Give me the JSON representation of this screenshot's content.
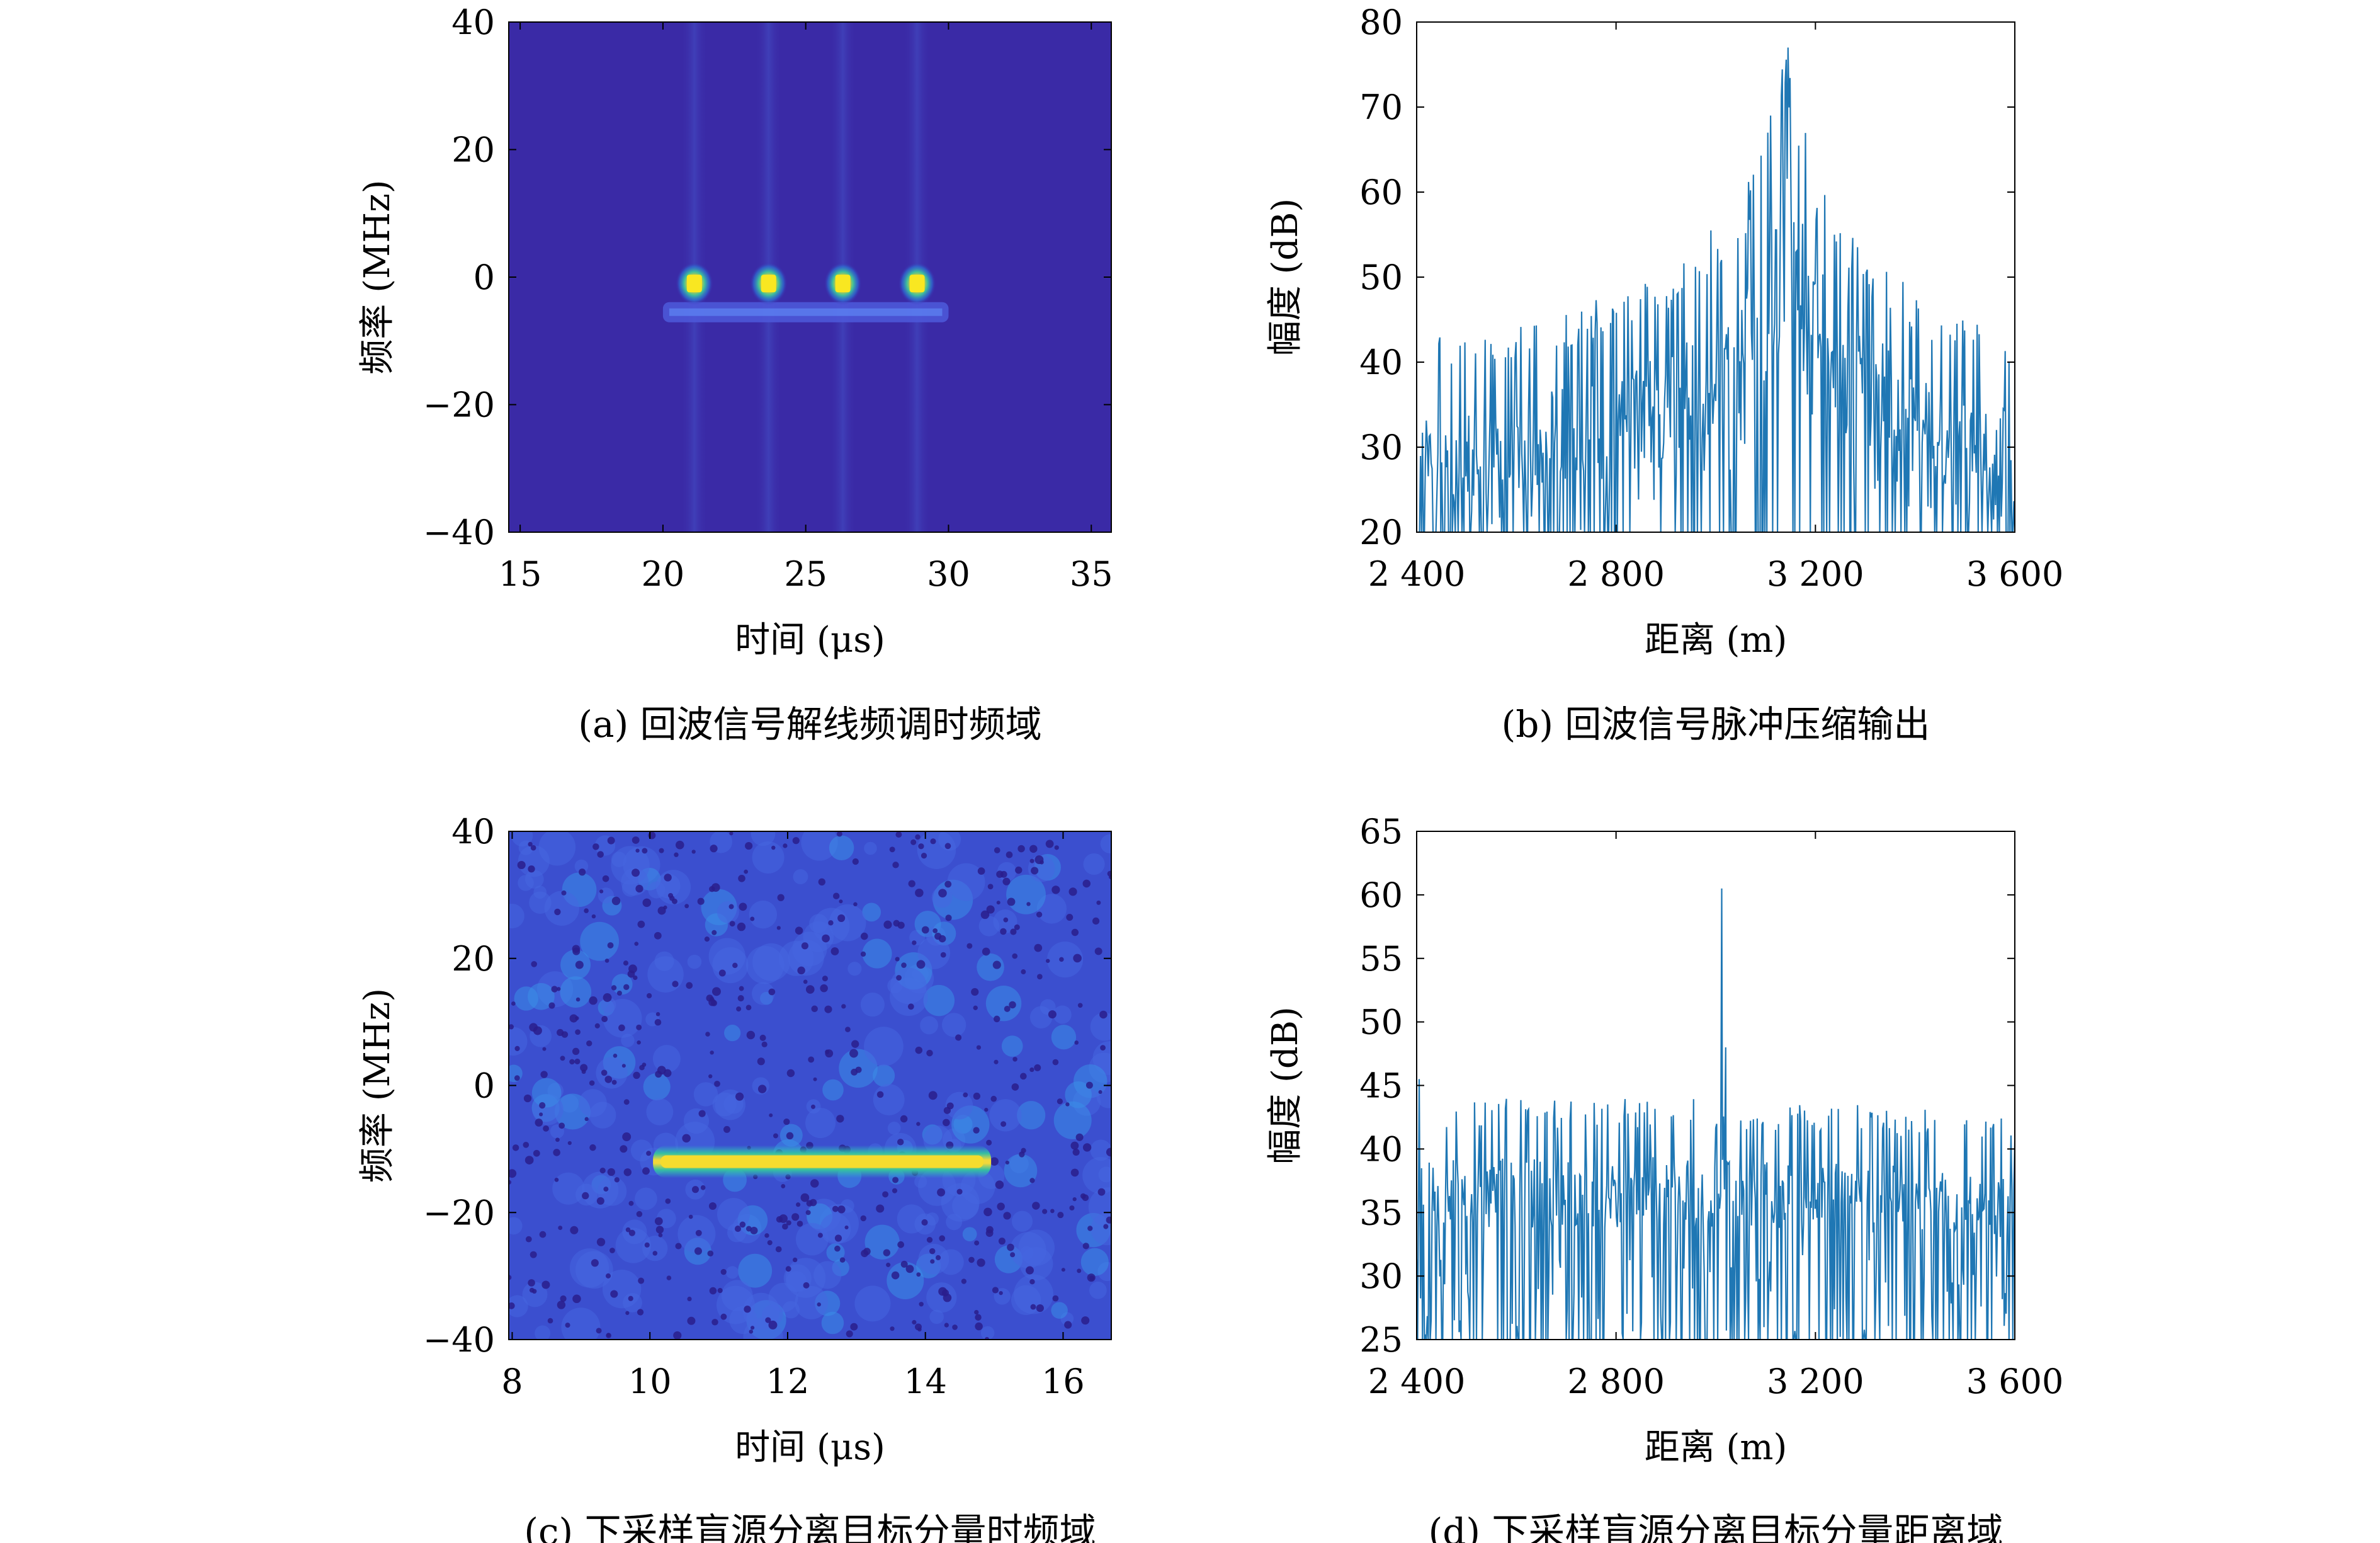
{
  "colors": {
    "heatmap_background": "#3a2aa6",
    "heatmap_low": "#3d26a8",
    "heatmap_mid": "#2db9c9",
    "heatmap_high": "#f9e721",
    "line": "#1f77b4",
    "axis": "#000000"
  },
  "chart_data": [
    {
      "id": "a",
      "type": "heatmap",
      "caption": "(a) 回波信号解线频调时频域",
      "xlabel": "时间 (μs)",
      "ylabel": "频率 (MHz)",
      "xlim": [
        14.6,
        35.7
      ],
      "ylim": [
        -40,
        40
      ],
      "xticks": [
        15,
        20,
        25,
        30,
        35
      ],
      "xtick_labels": [
        "15",
        "20",
        "25",
        "30",
        "35"
      ],
      "yticks": [
        40,
        20,
        0,
        -20,
        -40
      ],
      "ytick_labels": [
        "40",
        "20",
        "0",
        "−20",
        "−40"
      ],
      "grid": false,
      "features": {
        "band_frequency": -5.5,
        "band_time_range": [
          20,
          30
        ],
        "hotspots": [
          {
            "time": 21.1,
            "frequency": -1
          },
          {
            "time": 23.7,
            "frequency": -1
          },
          {
            "time": 26.3,
            "frequency": -1
          },
          {
            "time": 28.9,
            "frequency": -1
          }
        ]
      }
    },
    {
      "id": "b",
      "type": "line",
      "caption": "(b) 回波信号脉冲压缩输出",
      "xlabel": "距离 (m)",
      "ylabel": "幅度 (dB)",
      "xlim": [
        2400,
        3600
      ],
      "ylim": [
        20,
        80
      ],
      "xticks": [
        2400,
        2800,
        3200,
        3600
      ],
      "xtick_labels": [
        "2 400",
        "2 800",
        "3 200",
        "3 600"
      ],
      "yticks": [
        20,
        30,
        40,
        50,
        60,
        70,
        80
      ],
      "ytick_labels": [
        "20",
        "30",
        "40",
        "50",
        "60",
        "70",
        "80"
      ],
      "grid": false,
      "series": [
        {
          "envelope": [
            {
              "x": 2400,
              "baseline": 27,
              "peak": 43
            },
            {
              "x": 2600,
              "baseline": 29,
              "peak": 45
            },
            {
              "x": 2800,
              "baseline": 31,
              "peak": 48
            },
            {
              "x": 2950,
              "baseline": 35,
              "peak": 53
            },
            {
              "x": 3060,
              "baseline": 40,
              "peak": 60
            },
            {
              "x": 3140,
              "baseline": 55,
              "peak": 77
            },
            {
              "x": 3200,
              "baseline": 44,
              "peak": 62
            },
            {
              "x": 3300,
              "baseline": 37,
              "peak": 53
            },
            {
              "x": 3450,
              "baseline": 31,
              "peak": 46
            },
            {
              "x": 3600,
              "baseline": 28,
              "peak": 44
            }
          ],
          "notable_points": [
            {
              "x": 3110,
              "y": 69
            },
            {
              "x": 3145,
              "y": 77
            }
          ]
        }
      ]
    },
    {
      "id": "c",
      "type": "heatmap",
      "caption": "(c) 下采样盲源分离目标分量时频域",
      "xlabel": "时间 (μs)",
      "ylabel": "频率 (MHz)",
      "xlim": [
        7.95,
        16.7
      ],
      "ylim": [
        -40,
        40
      ],
      "xticks": [
        8,
        10,
        12,
        14,
        16
      ],
      "xtick_labels": [
        "8",
        "10",
        "12",
        "14",
        "16"
      ],
      "yticks": [
        40,
        20,
        0,
        -20,
        -40
      ],
      "ytick_labels": [
        "40",
        "20",
        "0",
        "−20",
        "−40"
      ],
      "grid": false,
      "features": {
        "band_frequency": -12,
        "band_time_range": [
          10.1,
          14.9
        ]
      }
    },
    {
      "id": "d",
      "type": "line",
      "caption": "(d) 下采样盲源分离目标分量距离域",
      "xlabel": "距离 (m)",
      "ylabel": "幅度 (dB)",
      "xlim": [
        2400,
        3600
      ],
      "ylim": [
        25,
        65
      ],
      "xticks": [
        2400,
        2800,
        3200,
        3600
      ],
      "xtick_labels": [
        "2 400",
        "2 800",
        "3 200",
        "3 600"
      ],
      "yticks": [
        25,
        30,
        35,
        40,
        45,
        50,
        55,
        60,
        65
      ],
      "ytick_labels": [
        "25",
        "30",
        "35",
        "40",
        "45",
        "50",
        "55",
        "60",
        "65"
      ],
      "grid": false,
      "series": [
        {
          "envelope": [
            {
              "x": 2400,
              "baseline": 36,
              "peak": 44
            },
            {
              "x": 3000,
              "baseline": 36,
              "peak": 44
            },
            {
              "x": 3600,
              "baseline": 35,
              "peak": 43
            }
          ],
          "notable_points": [
            {
              "x": 2405,
              "y": 45.5
            },
            {
              "x": 3012,
              "y": 60.5
            },
            {
              "x": 3020,
              "y": 48
            }
          ]
        }
      ]
    }
  ]
}
